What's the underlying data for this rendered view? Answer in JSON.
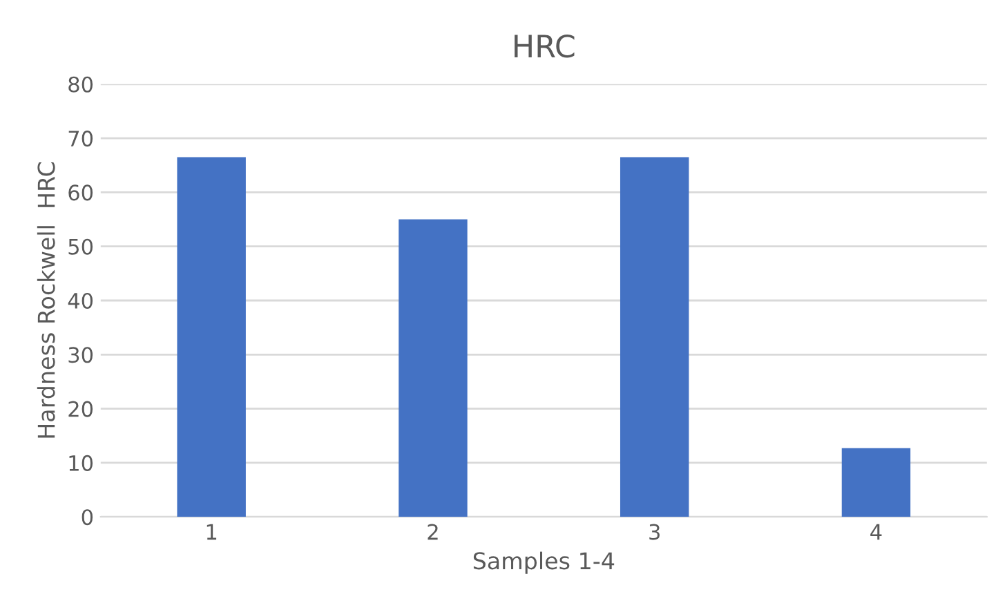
{
  "chart_data": {
    "type": "bar",
    "title": "HRC",
    "xlabel": "Samples 1-4",
    "ylabel": "Hardness Rockwell  HRC",
    "categories": [
      "1",
      "2",
      "3",
      "4"
    ],
    "values": [
      66.5,
      55,
      66.5,
      12.7
    ],
    "color": "#4472c4",
    "ylim": [
      0,
      80
    ],
    "yticks": [
      0,
      10,
      20,
      30,
      40,
      50,
      60,
      70,
      80
    ],
    "grid": "y",
    "legend": false
  }
}
